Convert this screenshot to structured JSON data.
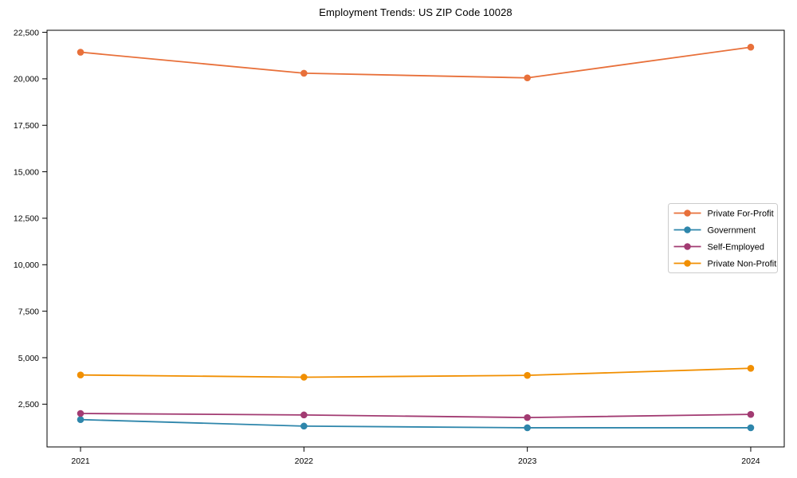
{
  "chart_data": {
    "type": "line",
    "title": "Employment Trends: US ZIP Code 10028",
    "x": [
      2021,
      2022,
      2023,
      2024
    ],
    "xtick_labels": [
      "2021",
      "2022",
      "2023",
      "2024"
    ],
    "series": [
      {
        "name": "Private For-Profit",
        "color": "#e8703a",
        "values": [
          21430,
          20300,
          20050,
          21700
        ]
      },
      {
        "name": "Government",
        "color": "#2e86ab",
        "values": [
          1670,
          1320,
          1230,
          1230
        ]
      },
      {
        "name": "Self-Employed",
        "color": "#a23b72",
        "values": [
          2000,
          1920,
          1780,
          1950
        ]
      },
      {
        "name": "Private Non-Profit",
        "color": "#f18f01",
        "values": [
          4070,
          3950,
          4050,
          4430
        ]
      }
    ],
    "yticks": [
      2500,
      5000,
      7500,
      10000,
      12500,
      15000,
      17500,
      20000,
      22500
    ],
    "ytick_labels": [
      "2,500",
      "5,000",
      "7,500",
      "10,000",
      "12,500",
      "15,000",
      "17,500",
      "20,000",
      "22,500"
    ],
    "xlabel": "",
    "ylabel": "",
    "xlim": [
      2020.85,
      2024.15
    ],
    "ylim": [
      200,
      22610
    ],
    "grid": false,
    "legend_position": "center-right",
    "marker": "circle",
    "background_color": "#ffffff",
    "axis_color": "#000000",
    "legend_border_color": "#cccccc"
  }
}
